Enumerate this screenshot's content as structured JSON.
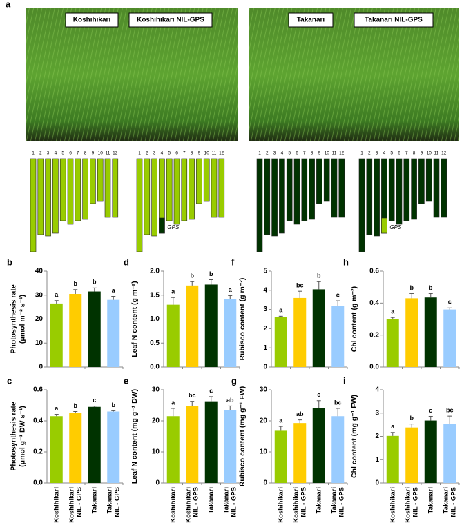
{
  "panel_a": {
    "letter": "a",
    "photo_labels": [
      "Koshihikari",
      "Koshihikari NIL-GPS",
      "Takanari",
      "Takanari NIL-GPS"
    ],
    "chromosomes": [
      "1",
      "2",
      "3",
      "4",
      "5",
      "6",
      "7",
      "8",
      "9",
      "10",
      "11",
      "12"
    ],
    "gene_label": "GPS"
  },
  "chart_data": [
    {
      "type": "bar",
      "panel": "b",
      "ylabel": [
        "Photosynthesis rate",
        "(μmol m⁻² s⁻¹)"
      ],
      "values": [
        26.5,
        30.5,
        31.5,
        28
      ],
      "errors": [
        1.2,
        1.8,
        1.5,
        1.5
      ],
      "sig_labels": [
        "a",
        "b",
        "b",
        "a"
      ],
      "colors": [
        "#99cc00",
        "#ffcc00",
        "#003300",
        "#99ccff"
      ],
      "ylim": [
        0,
        40
      ],
      "yticks": [
        0,
        10,
        20,
        30,
        40
      ]
    },
    {
      "type": "bar",
      "panel": "c",
      "ylabel": [
        "Photosynthesis rate",
        "(μmol g⁻¹ DW s⁻¹)"
      ],
      "values": [
        0.43,
        0.45,
        0.49,
        0.46
      ],
      "errors": [
        0.012,
        0.01,
        0.005,
        0.005
      ],
      "sig_labels": [
        "a",
        "b",
        "c",
        "b"
      ],
      "colors": [
        "#99cc00",
        "#ffcc00",
        "#003300",
        "#99ccff"
      ],
      "ylim": [
        0,
        0.6
      ],
      "yticks": [
        {
          "value": 0,
          "label": "0.0"
        },
        0.2,
        0.4,
        0.6
      ],
      "categories": [
        [
          "Koshihikari"
        ],
        [
          "Koshihikari",
          "NIL - GPS"
        ],
        [
          "Takanari"
        ],
        [
          "Takanari",
          "NIL - GPS"
        ]
      ]
    },
    {
      "type": "bar",
      "panel": "d",
      "ylabel": [
        "Leaf N content  (g m⁻²)"
      ],
      "values": [
        1.3,
        1.7,
        1.72,
        1.42
      ],
      "errors": [
        0.15,
        0.08,
        0.1,
        0.07
      ],
      "sig_labels": [
        "a",
        "b",
        "b",
        "a"
      ],
      "colors": [
        "#99cc00",
        "#ffcc00",
        "#003300",
        "#99ccff"
      ],
      "ylim": [
        0,
        2
      ],
      "yticks": [
        {
          "value": 0,
          "label": "0.0"
        },
        0.5,
        {
          "value": 1,
          "label": "1.0"
        },
        1.5,
        {
          "value": 2,
          "label": "2.0"
        }
      ]
    },
    {
      "type": "bar",
      "panel": "e",
      "ylabel": [
        "Leaf N content  (mg g⁻¹ DW)"
      ],
      "values": [
        21.5,
        24.8,
        26.3,
        23.5
      ],
      "errors": [
        2.5,
        1.5,
        1.5,
        1.3
      ],
      "sig_labels": [
        "a",
        "bc",
        "c",
        "ab"
      ],
      "colors": [
        "#99cc00",
        "#ffcc00",
        "#003300",
        "#99ccff"
      ],
      "ylim": [
        0,
        30
      ],
      "yticks": [
        0,
        10,
        20,
        30
      ],
      "categories": [
        [
          "Koshihikari"
        ],
        [
          "Koshihikari",
          "NIL - GPS"
        ],
        [
          "Takanari"
        ],
        [
          "Takanari",
          "NIL - GPS"
        ]
      ]
    },
    {
      "type": "bar",
      "panel": "f",
      "ylabel": [
        "Rubisco content  (g m⁻²)"
      ],
      "values": [
        2.6,
        3.6,
        4.05,
        3.2
      ],
      "errors": [
        0.05,
        0.35,
        0.4,
        0.25
      ],
      "sig_labels": [
        "a",
        "bc",
        "b",
        "c"
      ],
      "colors": [
        "#99cc00",
        "#ffcc00",
        "#003300",
        "#99ccff"
      ],
      "ylim": [
        0,
        5
      ],
      "yticks": [
        0,
        1,
        2,
        3,
        4,
        5
      ]
    },
    {
      "type": "bar",
      "panel": "g",
      "ylabel": [
        "Rubisco content  (mg g⁻¹ FW)"
      ],
      "values": [
        16.8,
        19.3,
        24,
        21.5
      ],
      "errors": [
        1.4,
        1,
        2.5,
        2.5
      ],
      "sig_labels": [
        "a",
        "ab",
        "c",
        "bc"
      ],
      "colors": [
        "#99cc00",
        "#ffcc00",
        "#003300",
        "#99ccff"
      ],
      "ylim": [
        0,
        30
      ],
      "yticks": [
        0,
        10,
        20,
        30
      ],
      "categories": [
        [
          "Koshihikari"
        ],
        [
          "Koshihikari",
          "NIL - GPS"
        ],
        [
          "Takanari"
        ],
        [
          "Takanari",
          "NIL - GPS"
        ]
      ]
    },
    {
      "type": "bar",
      "panel": "h",
      "ylabel": [
        "Chl content  (g m⁻²)"
      ],
      "values": [
        0.3,
        0.43,
        0.435,
        0.36
      ],
      "errors": [
        0.01,
        0.03,
        0.025,
        0.01
      ],
      "sig_labels": [
        "a",
        "b",
        "b",
        "c"
      ],
      "colors": [
        "#99cc00",
        "#ffcc00",
        "#003300",
        "#99ccff"
      ],
      "ylim": [
        0,
        0.6
      ],
      "yticks": [
        {
          "value": 0,
          "label": "0.0"
        },
        0.2,
        0.4,
        0.6
      ]
    },
    {
      "type": "bar",
      "panel": "i",
      "ylabel": [
        "Chl content  (mg g⁻¹ FW)"
      ],
      "values": [
        2.02,
        2.38,
        2.68,
        2.52
      ],
      "errors": [
        0.15,
        0.15,
        0.18,
        0.35
      ],
      "sig_labels": [
        "a",
        "b",
        "c",
        "bc"
      ],
      "colors": [
        "#99cc00",
        "#ffcc00",
        "#003300",
        "#99ccff"
      ],
      "ylim": [
        0,
        4
      ],
      "yticks": [
        0,
        1,
        2,
        3,
        4
      ],
      "categories": [
        [
          "Koshihikari"
        ],
        [
          "Koshihikari",
          "NIL - GPS"
        ],
        [
          "Takanari"
        ],
        [
          "Takanari",
          "NIL - GPS"
        ]
      ]
    }
  ]
}
